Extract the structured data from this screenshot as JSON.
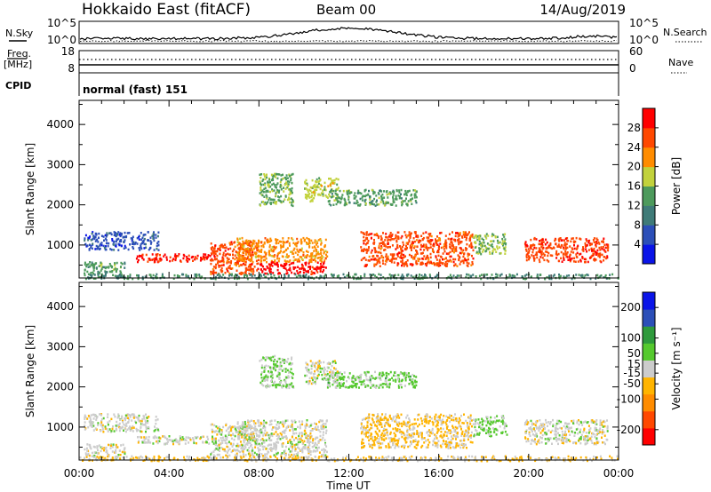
{
  "header": {
    "station": "Hokkaido East (fitACF)",
    "beam": "Beam 00",
    "date": "14/Aug/2019"
  },
  "summary_panels": {
    "nsky": {
      "label": "N.Sky",
      "ticks": [
        "10^5",
        "10^0"
      ]
    },
    "nsearch": {
      "label": "N.Search",
      "ticks": [
        "10^5",
        "10^0"
      ]
    },
    "freq": {
      "label_top": "Freq.",
      "label_bottom": "[MHz]",
      "ticks": [
        "18",
        "8"
      ]
    },
    "nave": {
      "label": "Nave",
      "ticks": [
        "60",
        "0"
      ]
    },
    "cpid": {
      "label": "CPID",
      "value": "normal (fast) 151"
    }
  },
  "chart_data": [
    {
      "type": "heatmap",
      "name": "power",
      "ylabel": "Slant Range [km]",
      "ylim": [
        180,
        4600
      ],
      "yticks": [
        1000,
        2000,
        3000,
        4000
      ],
      "xlim": [
        0,
        24
      ],
      "colorbar": {
        "label": "Power [dB]",
        "range": [
          0,
          32
        ],
        "ticks": [
          4,
          8,
          12,
          16,
          20,
          24,
          28
        ],
        "colors": [
          "#0a14e8",
          "#2c4fb8",
          "#3f7b78",
          "#4d9a5c",
          "#c2d23c",
          "#ff8c00",
          "#ff4800",
          "#ff0000"
        ]
      },
      "regions": [
        {
          "t0": 0.2,
          "t1": 3.5,
          "r0": 900,
          "r1": 1350,
          "v": 6
        },
        {
          "t0": 0.2,
          "t1": 2.0,
          "r0": 250,
          "r1": 600,
          "v": 14
        },
        {
          "t0": 2.5,
          "t1": 6.0,
          "r0": 600,
          "r1": 800,
          "v": 29
        },
        {
          "t0": 5.8,
          "t1": 8.0,
          "r0": 300,
          "r1": 1100,
          "v": 26
        },
        {
          "t0": 7.0,
          "t1": 11.0,
          "r0": 600,
          "r1": 1200,
          "v": 22
        },
        {
          "t0": 8.0,
          "t1": 11.0,
          "r0": 300,
          "r1": 600,
          "v": 30
        },
        {
          "t0": 8.0,
          "t1": 9.5,
          "r0": 2000,
          "r1": 2800,
          "v": 15
        },
        {
          "t0": 10.0,
          "t1": 11.5,
          "r0": 2100,
          "r1": 2700,
          "v": 18
        },
        {
          "t0": 12.5,
          "t1": 17.5,
          "r0": 500,
          "r1": 1350,
          "v": 26
        },
        {
          "t0": 11.0,
          "t1": 15.0,
          "r0": 2000,
          "r1": 2400,
          "v": 14
        },
        {
          "t0": 17.5,
          "t1": 19.0,
          "r0": 800,
          "r1": 1300,
          "v": 16
        },
        {
          "t0": 19.8,
          "t1": 23.5,
          "r0": 600,
          "r1": 1200,
          "v": 27
        },
        {
          "t0": 0.0,
          "t1": 24.0,
          "r0": 180,
          "r1": 300,
          "v": 12
        }
      ]
    },
    {
      "type": "heatmap",
      "name": "velocity",
      "ylabel": "Slant Range [km]",
      "ylim": [
        180,
        4600
      ],
      "yticks": [
        1000,
        2000,
        3000,
        4000
      ],
      "xlim": [
        0,
        24
      ],
      "xlabel": "Time UT",
      "xticks": [
        "00:00",
        "04:00",
        "08:00",
        "12:00",
        "16:00",
        "20:00",
        "00:00"
      ],
      "colorbar": {
        "label": "Velocity [m s⁻¹]",
        "range": [
          -250,
          250
        ],
        "ticks": [
          -200,
          -100,
          -50,
          -15,
          15,
          50,
          100,
          200
        ],
        "colors": [
          "#ff0000",
          "#ff4800",
          "#ff8c00",
          "#ffb400",
          "#cccccc",
          "#55c92e",
          "#2e9a3c",
          "#2c4fb8",
          "#0a14e8"
        ]
      },
      "regions": [
        {
          "t0": 0.2,
          "t1": 3.5,
          "r0": 900,
          "r1": 1350,
          "v": 0
        },
        {
          "t0": 0.2,
          "t1": 2.0,
          "r0": 250,
          "r1": 600,
          "v": 0
        },
        {
          "t0": 2.5,
          "t1": 6.0,
          "r0": 600,
          "r1": 800,
          "v": 0
        },
        {
          "t0": 5.8,
          "t1": 8.0,
          "r0": 300,
          "r1": 1100,
          "v": 0
        },
        {
          "t0": 7.0,
          "t1": 11.0,
          "r0": 600,
          "r1": 1200,
          "v": 0
        },
        {
          "t0": 8.0,
          "t1": 11.0,
          "r0": 300,
          "r1": 600,
          "v": 0
        },
        {
          "t0": 8.0,
          "t1": 9.5,
          "r0": 2000,
          "r1": 2800,
          "v": 30
        },
        {
          "t0": 10.0,
          "t1": 11.5,
          "r0": 2100,
          "r1": 2700,
          "v": 0
        },
        {
          "t0": 12.5,
          "t1": 17.5,
          "r0": 500,
          "r1": 1350,
          "v": -40
        },
        {
          "t0": 11.0,
          "t1": 15.0,
          "r0": 2000,
          "r1": 2400,
          "v": 45
        },
        {
          "t0": 17.5,
          "t1": 19.0,
          "r0": 800,
          "r1": 1300,
          "v": 40
        },
        {
          "t0": 19.8,
          "t1": 23.5,
          "r0": 600,
          "r1": 1200,
          "v": 0
        },
        {
          "t0": 0.0,
          "t1": 24.0,
          "r0": 180,
          "r1": 300,
          "v": -30
        }
      ]
    }
  ]
}
